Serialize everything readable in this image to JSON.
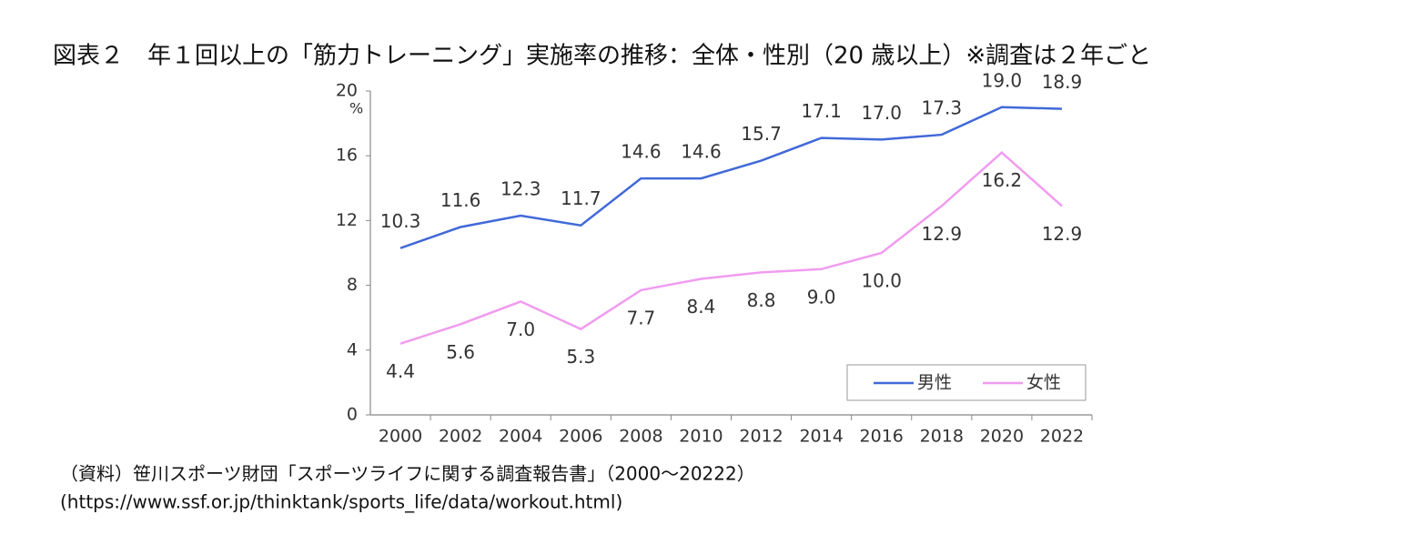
{
  "chart_data": {
    "type": "line",
    "title": "図表２　年１回以上の「筋力トレーニング」実施率の推移：全体・性別（20 歳以上）※調査は２年ごと",
    "y_unit": "%",
    "categories": [
      "2000",
      "2002",
      "2004",
      "2006",
      "2008",
      "2010",
      "2012",
      "2014",
      "2016",
      "2018",
      "2020",
      "2022"
    ],
    "series": [
      {
        "name": "男性",
        "color": "#4169d8",
        "values": [
          10.3,
          11.6,
          12.3,
          11.7,
          14.6,
          14.6,
          15.7,
          17.1,
          17.0,
          17.3,
          19.0,
          18.9
        ],
        "value_labels": [
          "10.3",
          "11.6",
          "12.3",
          "11.7",
          "14.6",
          "14.6",
          "15.7",
          "17.1",
          "17.0",
          "17.3",
          "19.0",
          "18.9"
        ]
      },
      {
        "name": "女性",
        "color": "#f09cf0",
        "values": [
          4.4,
          5.6,
          7.0,
          5.3,
          7.7,
          8.4,
          8.8,
          9.0,
          10.0,
          12.9,
          16.2,
          12.9
        ],
        "value_labels": [
          "4.4",
          "5.6",
          "7.0",
          "5.3",
          "7.7",
          "8.4",
          "8.8",
          "9.0",
          "10.0",
          "12.9",
          "16.2",
          "12.9"
        ]
      }
    ],
    "ylim": [
      0,
      20
    ],
    "yticks": [
      0,
      4,
      8,
      12,
      16,
      20
    ],
    "legend": "lower right",
    "source": [
      "（資料）笹川スポーツ財団「スポーツライフに関する調査報告書」（2000～20222）",
      "(https://www.ssf.or.jp/thinktank/sports_life/data/workout.html)"
    ]
  }
}
